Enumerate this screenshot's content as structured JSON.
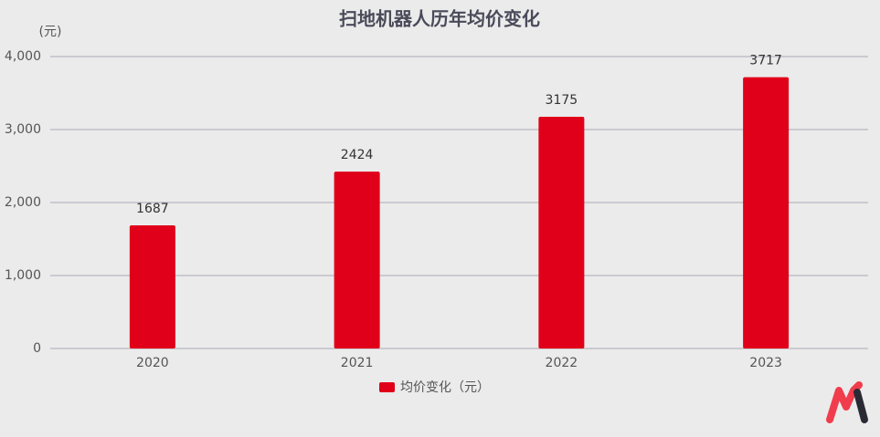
{
  "chart_data": {
    "type": "bar",
    "title": "扫地机器人历年均价变化",
    "y_label": "(元)",
    "categories": [
      "2020",
      "2021",
      "2022",
      "2023"
    ],
    "values": [
      1687,
      2424,
      3175,
      3717
    ],
    "series_name": "均价变化（元）",
    "color": "#e00019",
    "ylim": [
      0,
      4000
    ],
    "yticks": [
      0,
      {
        "value": 1000,
        "label": "1,000"
      },
      {
        "value": 2000,
        "label": "2,000"
      },
      {
        "value": 3000,
        "label": "3,000"
      },
      {
        "value": 4000,
        "label": "4,000"
      }
    ],
    "grid": true
  }
}
